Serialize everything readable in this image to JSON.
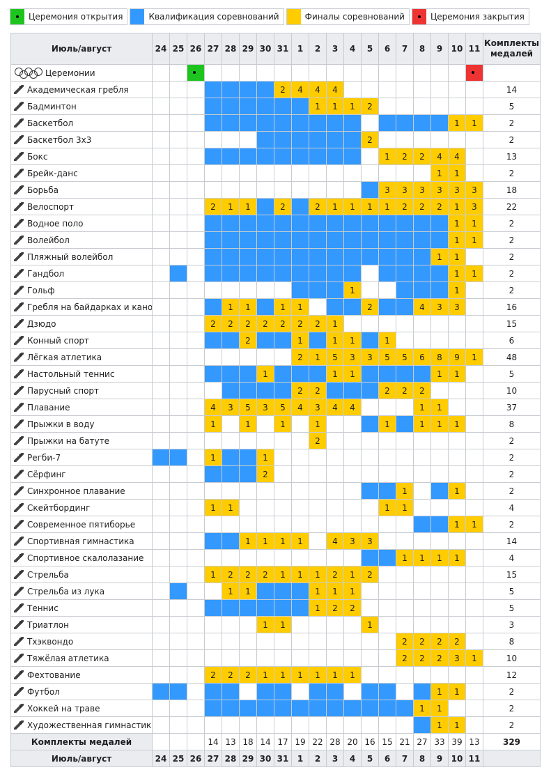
{
  "legend": [
    {
      "label": "Церемония открытия",
      "color": "#1ec41e"
    },
    {
      "label": "Квалификация соревнований",
      "color": "#3399ff"
    },
    {
      "label": "Финалы соревнований",
      "color": "#ffcc00"
    },
    {
      "label": "Церемония закрытия",
      "color": "#ee3333"
    }
  ],
  "table": {
    "header_label": "Июль/август",
    "medals_header": "Комплекты медалей",
    "dates": [
      24,
      25,
      26,
      27,
      28,
      29,
      30,
      31,
      1,
      2,
      3,
      4,
      5,
      6,
      7,
      8,
      9,
      10,
      11
    ],
    "rows": [
      {
        "sport": "Церемонии",
        "cells": [
          null,
          null,
          "#1ec41e",
          null,
          null,
          null,
          null,
          null,
          null,
          null,
          null,
          null,
          null,
          null,
          null,
          null,
          null,
          null,
          "#ee3333"
        ],
        "medals": null
      },
      {
        "sport": "Академическая гребля",
        "cells": [
          null,
          null,
          null,
          "#3399ff",
          "#3399ff",
          "#3399ff",
          "#3399ff",
          2,
          4,
          4,
          4,
          null,
          null,
          null,
          null,
          null,
          null,
          null,
          null
        ],
        "medals": 14
      },
      {
        "sport": "Бадминтон",
        "cells": [
          null,
          null,
          null,
          "#3399ff",
          "#3399ff",
          "#3399ff",
          "#3399ff",
          "#3399ff",
          "#3399ff",
          1,
          1,
          1,
          2,
          null,
          null,
          null,
          null,
          null,
          null
        ],
        "medals": 5
      },
      {
        "sport": "Баскетбол",
        "cells": [
          null,
          null,
          null,
          "#3399ff",
          "#3399ff",
          "#3399ff",
          "#3399ff",
          "#3399ff",
          "#3399ff",
          "#3399ff",
          "#3399ff",
          "#3399ff",
          null,
          "#3399ff",
          "#3399ff",
          "#3399ff",
          "#3399ff",
          1,
          1
        ],
        "medals": 2
      },
      {
        "sport": "Баскетбол 3х3",
        "cells": [
          null,
          null,
          null,
          null,
          null,
          null,
          "#3399ff",
          "#3399ff",
          "#3399ff",
          "#3399ff",
          "#3399ff",
          "#3399ff",
          2,
          null,
          null,
          null,
          null,
          null,
          null
        ],
        "medals": 2
      },
      {
        "sport": "Бокс",
        "cells": [
          null,
          null,
          null,
          "#3399ff",
          "#3399ff",
          "#3399ff",
          "#3399ff",
          "#3399ff",
          "#3399ff",
          "#3399ff",
          "#3399ff",
          "#3399ff",
          null,
          1,
          2,
          2,
          4,
          4,
          null
        ],
        "medals": 13
      },
      {
        "sport": "Брейк-данс",
        "cells": [
          null,
          null,
          null,
          null,
          null,
          null,
          null,
          null,
          null,
          null,
          null,
          null,
          null,
          null,
          null,
          null,
          1,
          1,
          null
        ],
        "medals": 2
      },
      {
        "sport": "Борьба",
        "cells": [
          null,
          null,
          null,
          null,
          null,
          null,
          null,
          null,
          null,
          null,
          null,
          null,
          "#3399ff",
          3,
          3,
          3,
          3,
          3,
          3
        ],
        "medals": 18
      },
      {
        "sport": "Велоспорт",
        "cells": [
          null,
          null,
          null,
          2,
          1,
          1,
          "#3399ff",
          2,
          "#3399ff",
          2,
          1,
          1,
          1,
          1,
          2,
          2,
          2,
          1,
          3
        ],
        "medals": 22
      },
      {
        "sport": "Водное поло",
        "cells": [
          null,
          null,
          null,
          "#3399ff",
          "#3399ff",
          "#3399ff",
          "#3399ff",
          "#3399ff",
          "#3399ff",
          "#3399ff",
          "#3399ff",
          "#3399ff",
          "#3399ff",
          "#3399ff",
          "#3399ff",
          "#3399ff",
          "#3399ff",
          1,
          1
        ],
        "medals": 2
      },
      {
        "sport": "Волейбол",
        "cells": [
          null,
          null,
          null,
          "#3399ff",
          "#3399ff",
          "#3399ff",
          "#3399ff",
          "#3399ff",
          "#3399ff",
          "#3399ff",
          "#3399ff",
          "#3399ff",
          "#3399ff",
          "#3399ff",
          "#3399ff",
          "#3399ff",
          "#3399ff",
          1,
          1
        ],
        "medals": 2
      },
      {
        "sport": "Пляжный волейбол",
        "cells": [
          null,
          null,
          null,
          "#3399ff",
          "#3399ff",
          "#3399ff",
          "#3399ff",
          "#3399ff",
          "#3399ff",
          "#3399ff",
          "#3399ff",
          "#3399ff",
          "#3399ff",
          "#3399ff",
          "#3399ff",
          "#3399ff",
          1,
          1,
          null
        ],
        "medals": 2
      },
      {
        "sport": "Гандбол",
        "cells": [
          null,
          "#3399ff",
          null,
          "#3399ff",
          "#3399ff",
          "#3399ff",
          "#3399ff",
          "#3399ff",
          "#3399ff",
          "#3399ff",
          "#3399ff",
          "#3399ff",
          null,
          "#3399ff",
          "#3399ff",
          "#3399ff",
          "#3399ff",
          1,
          1
        ],
        "medals": 2
      },
      {
        "sport": "Гольф",
        "cells": [
          null,
          null,
          null,
          null,
          null,
          null,
          null,
          null,
          "#3399ff",
          "#3399ff",
          "#3399ff",
          1,
          null,
          null,
          "#3399ff",
          "#3399ff",
          "#3399ff",
          1,
          null
        ],
        "medals": 2
      },
      {
        "sport": "Гребля на байдарках и каноэ",
        "cells": [
          null,
          null,
          null,
          "#3399ff",
          1,
          1,
          "#3399ff",
          1,
          1,
          null,
          "#3399ff",
          "#3399ff",
          2,
          "#3399ff",
          "#3399ff",
          4,
          3,
          3,
          null
        ],
        "medals": 16
      },
      {
        "sport": "Дзюдо",
        "cells": [
          null,
          null,
          null,
          2,
          2,
          2,
          2,
          2,
          2,
          2,
          1,
          null,
          null,
          null,
          null,
          null,
          null,
          null,
          null
        ],
        "medals": 15
      },
      {
        "sport": "Конный спорт",
        "cells": [
          null,
          null,
          null,
          "#3399ff",
          "#3399ff",
          2,
          "#3399ff",
          "#3399ff",
          1,
          "#3399ff",
          1,
          1,
          "#3399ff",
          1,
          null,
          null,
          null,
          null,
          null
        ],
        "medals": 6
      },
      {
        "sport": "Лёгкая атлетика",
        "cells": [
          null,
          null,
          null,
          null,
          null,
          null,
          null,
          null,
          2,
          1,
          5,
          3,
          3,
          5,
          5,
          6,
          8,
          9,
          1
        ],
        "medals": 48
      },
      {
        "sport": "Настольный теннис",
        "cells": [
          null,
          null,
          null,
          "#3399ff",
          "#3399ff",
          "#3399ff",
          1,
          "#3399ff",
          "#3399ff",
          "#3399ff",
          1,
          1,
          "#3399ff",
          "#3399ff",
          "#3399ff",
          "#3399ff",
          1,
          1,
          null
        ],
        "medals": 5
      },
      {
        "sport": "Парусный спорт",
        "cells": [
          null,
          null,
          null,
          null,
          "#3399ff",
          "#3399ff",
          "#3399ff",
          "#3399ff",
          2,
          2,
          "#3399ff",
          "#3399ff",
          "#3399ff",
          2,
          2,
          2,
          null,
          null,
          null
        ],
        "medals": 10
      },
      {
        "sport": "Плавание",
        "cells": [
          null,
          null,
          null,
          4,
          3,
          5,
          3,
          5,
          4,
          3,
          4,
          4,
          null,
          null,
          null,
          1,
          1,
          null,
          null
        ],
        "medals": 37
      },
      {
        "sport": "Прыжки в воду",
        "cells": [
          null,
          null,
          null,
          1,
          null,
          1,
          null,
          1,
          null,
          1,
          null,
          null,
          "#3399ff",
          1,
          "#3399ff",
          1,
          1,
          1,
          null
        ],
        "medals": 8
      },
      {
        "sport": "Прыжки на батуте",
        "cells": [
          null,
          null,
          null,
          null,
          null,
          null,
          null,
          null,
          null,
          2,
          null,
          null,
          null,
          null,
          null,
          null,
          null,
          null,
          null
        ],
        "medals": 2
      },
      {
        "sport": "Регби-7",
        "cells": [
          "#3399ff",
          "#3399ff",
          null,
          1,
          "#3399ff",
          "#3399ff",
          1,
          null,
          null,
          null,
          null,
          null,
          null,
          null,
          null,
          null,
          null,
          null,
          null
        ],
        "medals": 2
      },
      {
        "sport": "Сёрфинг",
        "cells": [
          null,
          null,
          null,
          "#3399ff",
          "#3399ff",
          "#3399ff",
          2,
          null,
          null,
          null,
          null,
          null,
          null,
          null,
          null,
          null,
          null,
          null,
          null
        ],
        "medals": 2
      },
      {
        "sport": "Синхронное плавание",
        "cells": [
          null,
          null,
          null,
          null,
          null,
          null,
          null,
          null,
          null,
          null,
          null,
          null,
          "#3399ff",
          "#3399ff",
          1,
          null,
          "#3399ff",
          1,
          null
        ],
        "medals": 2
      },
      {
        "sport": "Скейтбординг",
        "cells": [
          null,
          null,
          null,
          1,
          1,
          null,
          null,
          null,
          null,
          null,
          null,
          null,
          null,
          1,
          1,
          null,
          null,
          null,
          null
        ],
        "medals": 4
      },
      {
        "sport": "Современное пятиборье",
        "cells": [
          null,
          null,
          null,
          null,
          null,
          null,
          null,
          null,
          null,
          null,
          null,
          null,
          null,
          null,
          null,
          "#3399ff",
          "#3399ff",
          1,
          1
        ],
        "medals": 2
      },
      {
        "sport": "Спортивная гимнастика",
        "cells": [
          null,
          null,
          null,
          "#3399ff",
          "#3399ff",
          1,
          1,
          1,
          1,
          null,
          4,
          3,
          3,
          null,
          null,
          null,
          null,
          null,
          null
        ],
        "medals": 14
      },
      {
        "sport": "Спортивное скалолазание",
        "cells": [
          null,
          null,
          null,
          null,
          null,
          null,
          null,
          null,
          null,
          null,
          null,
          null,
          "#3399ff",
          "#3399ff",
          1,
          1,
          1,
          1,
          null
        ],
        "medals": 4
      },
      {
        "sport": "Стрельба",
        "cells": [
          null,
          null,
          null,
          1,
          2,
          2,
          2,
          1,
          1,
          1,
          2,
          1,
          2,
          null,
          null,
          null,
          null,
          null,
          null
        ],
        "medals": 15
      },
      {
        "sport": "Стрельба из лука",
        "cells": [
          null,
          "#3399ff",
          null,
          null,
          1,
          1,
          "#3399ff",
          "#3399ff",
          "#3399ff",
          1,
          1,
          1,
          null,
          null,
          null,
          null,
          null,
          null,
          null
        ],
        "medals": 5
      },
      {
        "sport": "Теннис",
        "cells": [
          null,
          null,
          null,
          "#3399ff",
          "#3399ff",
          "#3399ff",
          "#3399ff",
          "#3399ff",
          "#3399ff",
          1,
          2,
          2,
          null,
          null,
          null,
          null,
          null,
          null,
          null
        ],
        "medals": 5
      },
      {
        "sport": "Триатлон",
        "cells": [
          null,
          null,
          null,
          null,
          null,
          null,
          1,
          1,
          null,
          null,
          null,
          null,
          1,
          null,
          null,
          null,
          null,
          null,
          null
        ],
        "medals": 3
      },
      {
        "sport": "Тхэквондо",
        "cells": [
          null,
          null,
          null,
          null,
          null,
          null,
          null,
          null,
          null,
          null,
          null,
          null,
          null,
          null,
          2,
          2,
          2,
          2,
          null
        ],
        "medals": 8
      },
      {
        "sport": "Тяжёлая атлетика",
        "cells": [
          null,
          null,
          null,
          null,
          null,
          null,
          null,
          null,
          null,
          null,
          null,
          null,
          null,
          null,
          2,
          2,
          2,
          3,
          1
        ],
        "medals": 10
      },
      {
        "sport": "Фехтование",
        "cells": [
          null,
          null,
          null,
          2,
          2,
          2,
          1,
          1,
          1,
          1,
          1,
          1,
          null,
          null,
          null,
          null,
          null,
          null,
          null
        ],
        "medals": 12
      },
      {
        "sport": "Футбол",
        "cells": [
          "#3399ff",
          "#3399ff",
          null,
          "#3399ff",
          "#3399ff",
          null,
          "#3399ff",
          "#3399ff",
          null,
          "#3399ff",
          "#3399ff",
          null,
          "#3399ff",
          "#3399ff",
          null,
          "#3399ff",
          1,
          1,
          null
        ],
        "medals": 2
      },
      {
        "sport": "Хоккей на траве",
        "cells": [
          null,
          null,
          null,
          "#3399ff",
          "#3399ff",
          "#3399ff",
          "#3399ff",
          "#3399ff",
          "#3399ff",
          "#3399ff",
          "#3399ff",
          "#3399ff",
          "#3399ff",
          "#3399ff",
          "#3399ff",
          1,
          1,
          null,
          null
        ],
        "medals": 2
      },
      {
        "sport": "Художественная гимнастика",
        "cells": [
          null,
          null,
          null,
          null,
          null,
          null,
          null,
          null,
          null,
          null,
          null,
          null,
          null,
          null,
          null,
          "#3399ff",
          1,
          1,
          null
        ],
        "medals": 2
      }
    ],
    "totals_label": "Комплекты медалей",
    "totals": [
      null,
      null,
      null,
      14,
      13,
      18,
      14,
      17,
      19,
      22,
      28,
      20,
      16,
      15,
      21,
      27,
      33,
      39,
      13
    ],
    "grand_total": 329,
    "footer_label": "Июль/август"
  }
}
